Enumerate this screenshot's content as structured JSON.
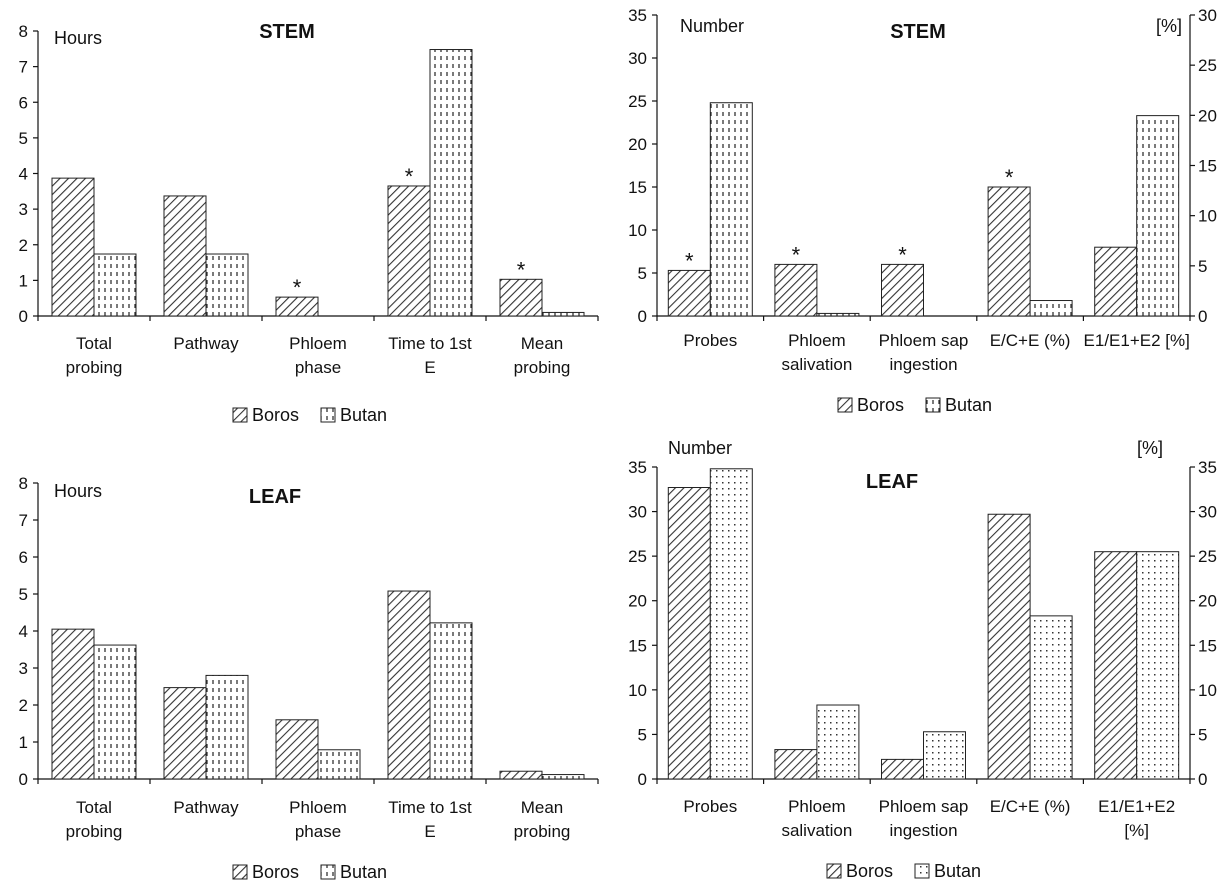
{
  "chart_data": [
    {
      "type": "bar",
      "title": "STEM",
      "ylabel": "Hours",
      "ylim": [
        0,
        8
      ],
      "yticks": [
        "0",
        "1",
        "2",
        "3",
        "4",
        "5",
        "6",
        "7",
        "8"
      ],
      "categories": [
        [
          "Total",
          "probing"
        ],
        [
          "Pathway"
        ],
        [
          "Phloem",
          "phase"
        ],
        [
          "Time to 1st",
          "E"
        ],
        [
          "Mean",
          "probing"
        ]
      ],
      "series": [
        {
          "name": "Boros",
          "values": [
            3.87,
            3.37,
            0.53,
            3.65,
            1.03
          ]
        },
        {
          "name": "Butan",
          "values": [
            1.74,
            1.74,
            0,
            7.48,
            0.1
          ]
        }
      ],
      "annotations": [
        {
          "text": "*",
          "category": 2,
          "series": 0
        },
        {
          "text": "*",
          "category": 3,
          "series": 0
        },
        {
          "text": "*",
          "category": 4,
          "series": 0
        }
      ],
      "legend": [
        "Boros",
        "Butan"
      ],
      "legend_position": "bottom"
    },
    {
      "type": "bar",
      "title": "STEM",
      "ylabel": "Number",
      "y2label": "[%]",
      "ylim": [
        0,
        35
      ],
      "yticks": [
        "0",
        "5",
        "10",
        "15",
        "20",
        "25",
        "30",
        "35"
      ],
      "y2lim": [
        0,
        30
      ],
      "y2ticks": [
        "0",
        "5",
        "10",
        "15",
        "20",
        "25",
        "30"
      ],
      "categories": [
        [
          "Probes"
        ],
        [
          "Phloem",
          "salivation"
        ],
        [
          "Phloem sap",
          "ingestion"
        ],
        [
          "E/C+E (%)"
        ],
        [
          "E1/E1+E2 [%]"
        ]
      ],
      "series": [
        {
          "name": "Boros",
          "values": [
            5.3,
            6.0,
            6.0,
            15.0,
            8.0
          ]
        },
        {
          "name": "Butan",
          "values": [
            24.8,
            0.3,
            0,
            1.8,
            23.3
          ]
        }
      ],
      "annotations": [
        {
          "text": "*",
          "category": 0,
          "series": 0
        },
        {
          "text": "*",
          "category": 1,
          "series": 0
        },
        {
          "text": "*",
          "category": 2,
          "series": 0
        },
        {
          "text": "*",
          "category": 3,
          "series": 0
        }
      ],
      "legend": [
        "Boros",
        "Butan"
      ],
      "legend_position": "bottom"
    },
    {
      "type": "bar",
      "title": "LEAF",
      "ylabel": "Hours",
      "ylim": [
        0,
        8
      ],
      "yticks": [
        "0",
        "1",
        "2",
        "3",
        "4",
        "5",
        "6",
        "7",
        "8"
      ],
      "categories": [
        [
          "Total",
          "probing"
        ],
        [
          "Pathway"
        ],
        [
          "Phloem",
          "phase"
        ],
        [
          "Time to 1st",
          "E"
        ],
        [
          "Mean",
          "probing"
        ]
      ],
      "series": [
        {
          "name": "Boros",
          "values": [
            4.05,
            2.47,
            1.6,
            5.08,
            0.21
          ]
        },
        {
          "name": "Butan",
          "values": [
            3.62,
            2.8,
            0.79,
            4.22,
            0.12
          ]
        }
      ],
      "annotations": [],
      "legend": [
        "Boros",
        "Butan"
      ],
      "legend_position": "bottom"
    },
    {
      "type": "bar",
      "title": "LEAF",
      "ylabel": "Number",
      "y2label": "[%]",
      "ylim": [
        0,
        35
      ],
      "yticks": [
        "0",
        "5",
        "10",
        "15",
        "20",
        "25",
        "30",
        "35"
      ],
      "y2lim": [
        0,
        35
      ],
      "y2ticks": [
        "0",
        "5",
        "10",
        "15",
        "20",
        "25",
        "30",
        "35"
      ],
      "categories": [
        [
          "Probes"
        ],
        [
          "Phloem",
          "salivation"
        ],
        [
          "Phloem sap",
          "ingestion"
        ],
        [
          "E/C+E (%)"
        ],
        [
          "E1/E1+E2",
          "[%]"
        ]
      ],
      "series": [
        {
          "name": "Boros",
          "values": [
            32.7,
            3.3,
            2.2,
            29.7,
            25.5
          ]
        },
        {
          "name": "Butan",
          "values": [
            34.8,
            8.3,
            5.3,
            18.3,
            25.5
          ]
        }
      ],
      "annotations": [],
      "legend": [
        "Boros",
        "Butan"
      ],
      "legend_position": "bottom"
    }
  ]
}
